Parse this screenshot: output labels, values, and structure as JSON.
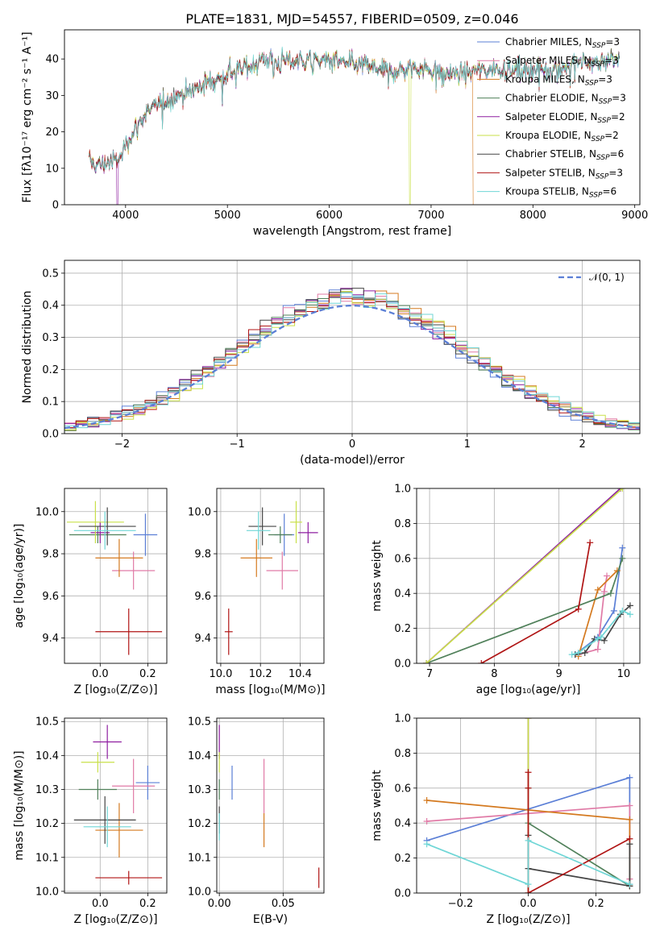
{
  "figure": {
    "title": "PLATE=1831, MJD=54557, FIBERID=0509, z=0.046"
  },
  "models": [
    {
      "name": "Chabrier MILES",
      "nssp": "3",
      "color": "#5b7fd6"
    },
    {
      "name": "Salpeter MILES",
      "nssp": "3",
      "color": "#e07aa6"
    },
    {
      "name": "Kroupa MILES",
      "nssp": "3",
      "color": "#d4791f"
    },
    {
      "name": "Chabrier ELODIE",
      "nssp": "3",
      "color": "#50805a"
    },
    {
      "name": "Salpeter ELODIE",
      "nssp": "2",
      "color": "#8e1ea0"
    },
    {
      "name": "Kroupa ELODIE",
      "nssp": "2",
      "color": "#c9e04a"
    },
    {
      "name": "Chabrier STELIB",
      "nssp": "6",
      "color": "#444444"
    },
    {
      "name": "Salpeter STELIB",
      "nssp": "3",
      "color": "#b01515"
    },
    {
      "name": "Kroupa STELIB",
      "nssp": "6",
      "color": "#6fd6d6"
    }
  ],
  "legend_nssp_prefix": "N",
  "legend_nssp_sub": "SSP",
  "chart_data": [
    {
      "id": "spectrum",
      "type": "line",
      "xlabel": "wavelength [Angstrom, rest frame]",
      "ylabel": "Flux [fλ10⁻¹⁷ erg cm⁻² s⁻¹ A⁻¹]",
      "xlim": [
        3400,
        9050
      ],
      "ylim": [
        0,
        48
      ],
      "xticks": [
        4000,
        5000,
        6000,
        7000,
        8000,
        9000
      ],
      "yticks": [
        0,
        10,
        20,
        30,
        40
      ],
      "grid": false,
      "legend": "upper-right",
      "data_range": [
        3640,
        8850
      ],
      "continuum": {
        "x": [
          3640,
          3700,
          3760,
          3830,
          3900,
          3960,
          4000,
          4100,
          4200,
          4300,
          4400,
          4500,
          4600,
          4700,
          4800,
          4900,
          5000,
          5100,
          5200,
          5300,
          5400,
          5500,
          5600,
          5700,
          5800,
          5900,
          6000,
          6100,
          6200,
          6300,
          6400,
          6500,
          6600,
          6700,
          6800,
          6900,
          7000,
          7100,
          7200,
          7300,
          7400,
          7500,
          7600,
          7700,
          7800,
          7900,
          8000,
          8100,
          8200,
          8300,
          8400,
          8500,
          8600,
          8700,
          8850
        ],
        "y": [
          12,
          11,
          11,
          11.5,
          12,
          13,
          17,
          21,
          25,
          27,
          29,
          30,
          31,
          32,
          33.5,
          34.5,
          36,
          37,
          38,
          39.5,
          40,
          39,
          39.5,
          39.5,
          39.5,
          39.5,
          40,
          39,
          38.5,
          38.5,
          38,
          37,
          36.5,
          37,
          37.5,
          37.5,
          37,
          36.5,
          36,
          36,
          36.5,
          37,
          37.5,
          37.5,
          37,
          37,
          37,
          37.5,
          37.5,
          38,
          38.5,
          39,
          39,
          40,
          40
        ]
      },
      "dropouts": [
        {
          "model": "Salpeter ELODIE",
          "x": 3920
        },
        {
          "model": "Kroupa ELODIE",
          "x": 6790
        },
        {
          "model": "Kroupa MILES",
          "x": 7420
        }
      ]
    },
    {
      "id": "residuals",
      "type": "step-histogram",
      "xlabel": "(data-model)/error",
      "ylabel": "Normed distribution",
      "xlim": [
        -2.5,
        2.5
      ],
      "ylim": [
        0,
        0.54
      ],
      "xticks": [
        -2,
        -1,
        0,
        1,
        2
      ],
      "yticks": [
        0.0,
        0.1,
        0.2,
        0.3,
        0.4,
        0.5
      ],
      "grid": true,
      "legend": "upper-right",
      "bin_width": 0.1,
      "reference": {
        "label": "𝒩(0, 1)",
        "mean": 0,
        "sigma": 1,
        "color": "#5b7fd6"
      }
    },
    {
      "id": "age-vs-Z",
      "type": "errorbar",
      "xlabel": "Z [log₁₀(Z/Z⊙)]",
      "ylabel": "age  [log₁₀(age/yr)]",
      "xlim": [
        -0.15,
        0.28
      ],
      "ylim": [
        9.28,
        10.11
      ],
      "xticks": [
        0.0,
        0.2
      ],
      "yticks": [
        9.4,
        9.6,
        9.8,
        10.0
      ],
      "grid": true,
      "points": [
        {
          "model": "Chabrier MILES",
          "x": 0.19,
          "xerr": 0.05,
          "y": 9.89,
          "yerr": 0.1
        },
        {
          "model": "Salpeter MILES",
          "x": 0.14,
          "xerr": 0.09,
          "y": 9.72,
          "yerr": 0.09
        },
        {
          "model": "Kroupa MILES",
          "x": 0.08,
          "xerr": 0.1,
          "y": 9.78,
          "yerr": 0.09
        },
        {
          "model": "Chabrier ELODIE",
          "x": -0.01,
          "xerr": 0.12,
          "y": 9.89,
          "yerr": 0.04
        },
        {
          "model": "Salpeter ELODIE",
          "x": 0.0,
          "xerr": 0.04,
          "y": 9.9,
          "yerr": 0.05
        },
        {
          "model": "Kroupa ELODIE",
          "x": -0.02,
          "xerr": 0.12,
          "y": 9.95,
          "yerr": 0.1
        },
        {
          "model": "Chabrier STELIB",
          "x": 0.03,
          "xerr": 0.12,
          "y": 9.93,
          "yerr": 0.09
        },
        {
          "model": "Salpeter STELIB",
          "x": 0.12,
          "xerr": 0.14,
          "y": 9.43,
          "yerr": 0.11
        },
        {
          "model": "Kroupa STELIB",
          "x": 0.02,
          "xerr": 0.13,
          "y": 9.91,
          "yerr": 0.09
        }
      ]
    },
    {
      "id": "age-vs-mass",
      "type": "errorbar",
      "xlabel": "mass [log₁₀(M/M⊙)]",
      "ylabel": "",
      "xlim": [
        9.98,
        10.52
      ],
      "ylim": [
        9.28,
        10.11
      ],
      "xticks": [
        10.0,
        10.2,
        10.4
      ],
      "yticks": [
        9.4,
        9.6,
        9.8,
        10.0
      ],
      "grid": true,
      "points": [
        {
          "model": "Chabrier MILES",
          "x": 10.32,
          "xerr": 0.05,
          "y": 9.89,
          "yerr": 0.1
        },
        {
          "model": "Salpeter MILES",
          "x": 10.31,
          "xerr": 0.08,
          "y": 9.72,
          "yerr": 0.09
        },
        {
          "model": "Kroupa MILES",
          "x": 10.18,
          "xerr": 0.08,
          "y": 9.78,
          "yerr": 0.09
        },
        {
          "model": "Chabrier ELODIE",
          "x": 10.3,
          "xerr": 0.06,
          "y": 9.89,
          "yerr": 0.04
        },
        {
          "model": "Salpeter ELODIE",
          "x": 10.44,
          "xerr": 0.05,
          "y": 9.9,
          "yerr": 0.05
        },
        {
          "model": "Kroupa ELODIE",
          "x": 10.38,
          "xerr": 0.03,
          "y": 9.95,
          "yerr": 0.1
        },
        {
          "model": "Chabrier STELIB",
          "x": 10.21,
          "xerr": 0.07,
          "y": 9.93,
          "yerr": 0.09
        },
        {
          "model": "Salpeter STELIB",
          "x": 10.04,
          "xerr": 0.02,
          "y": 9.43,
          "yerr": 0.11
        },
        {
          "model": "Kroupa STELIB",
          "x": 10.19,
          "xerr": 0.06,
          "y": 9.91,
          "yerr": 0.09
        }
      ]
    },
    {
      "id": "mass-weight-vs-age",
      "type": "line",
      "xlabel": "age  [log₁₀(age/yr)]",
      "ylabel": "mass weight",
      "xlim": [
        6.8,
        10.25
      ],
      "ylim": [
        0,
        1
      ],
      "xticks": [
        7,
        8,
        9,
        10
      ],
      "yticks": [
        0.0,
        0.2,
        0.4,
        0.6,
        0.8,
        1.0
      ],
      "grid": true,
      "series": [
        {
          "model": "Chabrier MILES",
          "x": [
            9.25,
            9.6,
            9.85,
            9.98
          ],
          "y": [
            0.05,
            0.15,
            0.3,
            0.66
          ]
        },
        {
          "model": "Salpeter MILES",
          "x": [
            9.3,
            9.6,
            9.7,
            9.74
          ],
          "y": [
            0.05,
            0.08,
            0.41,
            0.5
          ]
        },
        {
          "model": "Kroupa MILES",
          "x": [
            9.3,
            9.6,
            9.9
          ],
          "y": [
            0.04,
            0.42,
            0.53
          ]
        },
        {
          "model": "Chabrier ELODIE",
          "x": [
            6.95,
            9.8,
            9.98
          ],
          "y": [
            0.0,
            0.4,
            0.6
          ]
        },
        {
          "model": "Salpeter ELODIE",
          "x": [
            6.95,
            9.95
          ],
          "y": [
            0.0,
            1.0
          ]
        },
        {
          "model": "Kroupa ELODIE",
          "x": [
            6.95,
            9.98
          ],
          "y": [
            0.0,
            1.0
          ]
        },
        {
          "model": "Chabrier STELIB",
          "x": [
            9.25,
            9.4,
            9.55,
            9.7,
            9.95,
            10.1
          ],
          "y": [
            0.05,
            0.06,
            0.14,
            0.13,
            0.28,
            0.33
          ]
        },
        {
          "model": "Salpeter STELIB",
          "x": [
            7.8,
            9.3,
            9.48
          ],
          "y": [
            0.0,
            0.31,
            0.69
          ]
        },
        {
          "model": "Kroupa STELIB",
          "x": [
            9.2,
            9.3,
            9.6,
            9.65,
            9.98,
            10.1
          ],
          "y": [
            0.05,
            0.06,
            0.14,
            0.15,
            0.3,
            0.28
          ]
        }
      ]
    },
    {
      "id": "mass-vs-Z",
      "type": "errorbar",
      "xlabel": "Z [log₁₀(Z/Z⊙)]",
      "ylabel": "mass [log₁₀(M/M⊙)]",
      "xlim": [
        -0.15,
        0.28
      ],
      "ylim": [
        9.995,
        10.51
      ],
      "xticks": [
        0.0,
        0.2
      ],
      "yticks": [
        10.0,
        10.1,
        10.2,
        10.3,
        10.4,
        10.5
      ],
      "grid": true,
      "points": [
        {
          "model": "Chabrier MILES",
          "x": 0.2,
          "xerr": 0.05,
          "y": 10.32,
          "yerr": 0.05
        },
        {
          "model": "Salpeter MILES",
          "x": 0.14,
          "xerr": 0.09,
          "y": 10.31,
          "yerr": 0.08
        },
        {
          "model": "Kroupa MILES",
          "x": 0.08,
          "xerr": 0.1,
          "y": 10.18,
          "yerr": 0.08
        },
        {
          "model": "Chabrier ELODIE",
          "x": -0.01,
          "xerr": 0.08,
          "y": 10.3,
          "yerr": 0.03
        },
        {
          "model": "Salpeter ELODIE",
          "x": 0.03,
          "xerr": 0.06,
          "y": 10.44,
          "yerr": 0.05
        },
        {
          "model": "Kroupa ELODIE",
          "x": -0.01,
          "xerr": 0.07,
          "y": 10.38,
          "yerr": 0.03
        },
        {
          "model": "Chabrier STELIB",
          "x": 0.02,
          "xerr": 0.13,
          "y": 10.21,
          "yerr": 0.07
        },
        {
          "model": "Salpeter STELIB",
          "x": 0.12,
          "xerr": 0.14,
          "y": 10.04,
          "yerr": 0.02
        },
        {
          "model": "Kroupa STELIB",
          "x": 0.03,
          "xerr": 0.1,
          "y": 10.19,
          "yerr": 0.06
        }
      ]
    },
    {
      "id": "mass-vs-EBV",
      "type": "errorbar",
      "xlabel": "E(B-V)",
      "ylabel": "",
      "xlim": [
        -0.002,
        0.082
      ],
      "ylim": [
        9.995,
        10.51
      ],
      "xticks": [
        0.0,
        0.05
      ],
      "yticks": [
        10.0,
        10.1,
        10.2,
        10.3,
        10.4,
        10.5
      ],
      "grid": true,
      "points": [
        {
          "model": "Chabrier MILES",
          "x": 0.01,
          "xerr": 0,
          "y": 10.32,
          "yerr": 0.05
        },
        {
          "model": "Salpeter MILES",
          "x": 0.035,
          "xerr": 0,
          "y": 10.31,
          "yerr": 0.08
        },
        {
          "model": "Kroupa MILES",
          "x": 0.035,
          "xerr": 0,
          "y": 10.18,
          "yerr": 0.05
        },
        {
          "model": "Chabrier ELODIE",
          "x": 0.0,
          "xerr": 0,
          "y": 10.3,
          "yerr": 0.03
        },
        {
          "model": "Salpeter ELODIE",
          "x": 0.0,
          "xerr": 0,
          "y": 10.44,
          "yerr": 0.05
        },
        {
          "model": "Kroupa ELODIE",
          "x": 0.0,
          "xerr": 0,
          "y": 10.38,
          "yerr": 0.03
        },
        {
          "model": "Chabrier STELIB",
          "x": 0.0,
          "xerr": 0,
          "y": 10.21,
          "yerr": 0.04
        },
        {
          "model": "Salpeter STELIB",
          "x": 0.078,
          "xerr": 0,
          "y": 10.04,
          "yerr": 0.03
        },
        {
          "model": "Kroupa STELIB",
          "x": 0.0,
          "xerr": 0,
          "y": 10.19,
          "yerr": 0.04
        }
      ]
    },
    {
      "id": "mass-weight-vs-Z",
      "type": "line",
      "xlabel": "Z [log₁₀(Z/Z⊙)]",
      "ylabel": "mass weight",
      "xlim": [
        -0.33,
        0.33
      ],
      "ylim": [
        0,
        1
      ],
      "xticks": [
        -0.2,
        0.0,
        0.2
      ],
      "yticks": [
        0.0,
        0.2,
        0.4,
        0.6,
        0.8,
        1.0
      ],
      "grid": true,
      "series": [
        {
          "model": "Chabrier MILES",
          "x": [
            -0.3,
            0.3,
            0.3
          ],
          "y": [
            0.3,
            0.66,
            0.05
          ]
        },
        {
          "model": "Salpeter MILES",
          "x": [
            -0.3,
            0.3,
            0.3
          ],
          "y": [
            0.41,
            0.5,
            0.08
          ]
        },
        {
          "model": "Kroupa MILES",
          "x": [
            -0.3,
            0.3,
            0.3
          ],
          "y": [
            0.53,
            0.42,
            0.04
          ]
        },
        {
          "model": "Chabrier ELODIE",
          "x": [
            0.0,
            0.0,
            0.3
          ],
          "y": [
            0.6,
            0.4,
            0.04
          ]
        },
        {
          "model": "Salpeter ELODIE",
          "x": [
            0.0,
            0.0
          ],
          "y": [
            0.0,
            1.0
          ]
        },
        {
          "model": "Kroupa ELODIE",
          "x": [
            0.0,
            0.0
          ],
          "y": [
            0.0,
            1.0
          ]
        },
        {
          "model": "Chabrier STELIB",
          "x": [
            0.0,
            0.0,
            0.3,
            0.3
          ],
          "y": [
            0.33,
            0.14,
            0.04,
            0.28
          ]
        },
        {
          "model": "Salpeter STELIB",
          "x": [
            0.0,
            0.0,
            0.0,
            0.3
          ],
          "y": [
            0.69,
            0.6,
            0.0,
            0.31
          ]
        },
        {
          "model": "Kroupa STELIB",
          "x": [
            -0.3,
            0.0,
            0.0,
            0.3
          ],
          "y": [
            0.28,
            0.05,
            0.3,
            0.05
          ]
        }
      ]
    }
  ]
}
